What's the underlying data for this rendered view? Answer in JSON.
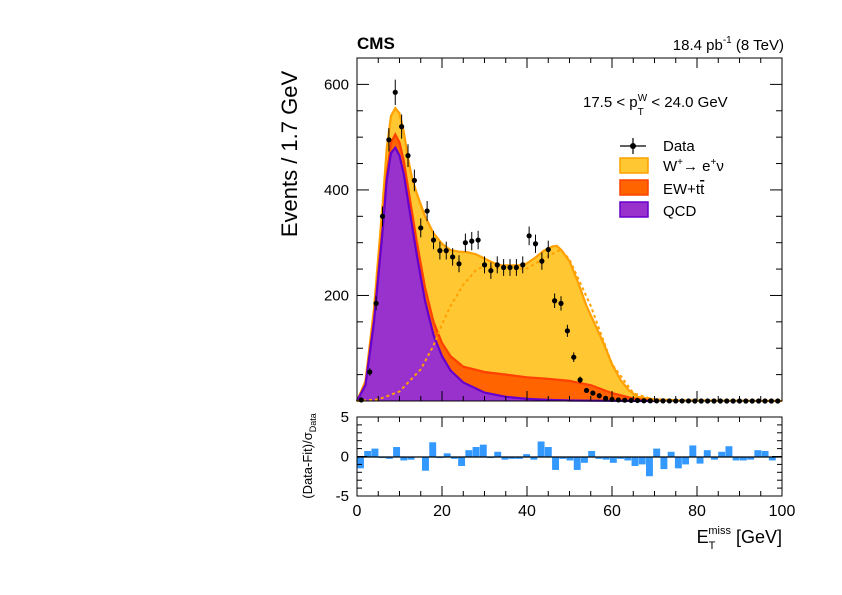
{
  "header": {
    "experiment": "CMS",
    "lumi_value": "18.4 pb",
    "lumi_exp": "-1",
    "energy": " (8 TeV)"
  },
  "selection": {
    "range_lo": "17.5 < p",
    "sub": "T",
    "sup": "W",
    "range_hi": " < 24.0 GeV"
  },
  "legend": {
    "data": "Data",
    "signal_main": "W",
    "signal_sup": "+",
    "signal_arrow": "→ e",
    "signal_sup2": "+",
    "signal_nu": "ν",
    "ew": "EW+t",
    "ew_bar": "t",
    "qcd": "QCD"
  },
  "colors": {
    "signal_fill": "#FFC832",
    "signal_line": "#FFA000",
    "ew_fill": "#FF6400",
    "ew_line": "#FF4000",
    "qcd_fill": "#9932CC",
    "qcd_line": "#6600CC",
    "pull_bar": "#3399FF",
    "data": "#000000"
  },
  "chart_data": [
    {
      "type": "area",
      "ylabel": "Events / 1.7 GeV",
      "xlim": [
        0,
        100
      ],
      "ylim": [
        0,
        650
      ],
      "yticks": [
        200,
        400,
        600
      ],
      "xticks": [
        0,
        20,
        40,
        60,
        80,
        100
      ],
      "stack": [
        {
          "name": "QCD",
          "x": [
            0,
            2,
            4,
            6,
            7,
            8,
            9,
            10,
            11,
            12,
            14,
            16,
            18,
            20,
            22,
            25,
            30,
            35,
            40,
            45,
            50,
            55,
            60,
            65,
            70
          ],
          "values": [
            0,
            30,
            150,
            320,
            420,
            470,
            480,
            465,
            430,
            380,
            280,
            190,
            125,
            85,
            58,
            35,
            16,
            8,
            4,
            2,
            1,
            0.5,
            0.3,
            0.1,
            0
          ]
        },
        {
          "name": "EW+tt",
          "x": [
            0,
            2,
            4,
            6,
            7,
            8,
            9,
            10,
            11,
            12,
            14,
            16,
            18,
            20,
            22,
            25,
            30,
            35,
            40,
            45,
            50,
            55,
            60,
            65,
            70
          ],
          "values": [
            0,
            32,
            155,
            330,
            430,
            490,
            505,
            490,
            455,
            405,
            305,
            215,
            150,
            110,
            85,
            65,
            55,
            50,
            45,
            42,
            38,
            30,
            15,
            5,
            0
          ]
        },
        {
          "name": "W+ -> e+ nu",
          "x": [
            0,
            2,
            4,
            6,
            7,
            8,
            9,
            10,
            11,
            12,
            13,
            14,
            16,
            18,
            20,
            22,
            24,
            26,
            28,
            30,
            32,
            34,
            36,
            38,
            40,
            42,
            44,
            46,
            47,
            48,
            50,
            52,
            54,
            56,
            58,
            60,
            62,
            64,
            66,
            70,
            75,
            80,
            85,
            90,
            95,
            100
          ],
          "values": [
            0,
            38,
            175,
            370,
            480,
            540,
            555,
            545,
            510,
            460,
            420,
            395,
            350,
            318,
            298,
            286,
            283,
            282,
            278,
            270,
            262,
            257,
            257,
            257,
            261,
            272,
            285,
            293,
            294,
            287,
            265,
            225,
            180,
            145,
            110,
            70,
            40,
            20,
            8,
            3,
            1.5,
            1,
            0.8,
            0.5,
            0.3,
            0.2
          ]
        }
      ],
      "signal_only": {
        "name": "W+ -> e+ nu (signal component)",
        "x": [
          0,
          5,
          10,
          15,
          18,
          20,
          22,
          25,
          28,
          30,
          32,
          35,
          40,
          45,
          48,
          50,
          55,
          60,
          65,
          70
        ],
        "values": [
          0,
          3,
          18,
          60,
          105,
          145,
          180,
          220,
          248,
          256,
          254,
          249,
          251,
          275,
          287,
          268,
          180,
          70,
          15,
          2
        ]
      },
      "data_points": {
        "name": "Data",
        "x": [
          1,
          3,
          4.5,
          6,
          7.5,
          9,
          10.5,
          12,
          13.5,
          15,
          16.5,
          18,
          19.5,
          21,
          22.5,
          24,
          25.5,
          27,
          28.5,
          30,
          31.5,
          33,
          34.5,
          36,
          37.5,
          39,
          40.5,
          42,
          43.5,
          45,
          46.5,
          48,
          49.5,
          51,
          52.5,
          54,
          55.5,
          57,
          58.5,
          60,
          61.5,
          63,
          64.5,
          66,
          67.5,
          69,
          70.5,
          72,
          73.5,
          75,
          76.5,
          78,
          79.5,
          81,
          82.5,
          84,
          85.5,
          87,
          88.5,
          90,
          91.5,
          93,
          94.5,
          96,
          97.5,
          99
        ],
        "values": [
          2,
          55,
          185,
          350,
          495,
          585,
          520,
          465,
          418,
          328,
          360,
          305,
          285,
          285,
          273,
          260,
          300,
          303,
          305,
          258,
          247,
          258,
          253,
          253,
          253,
          258,
          313,
          298,
          265,
          287,
          190,
          185,
          133,
          83,
          40,
          20,
          15,
          10,
          5,
          3,
          2,
          1.5,
          1,
          1,
          0.5,
          0.5,
          0.3,
          0.2,
          0.1,
          0.1,
          0.1,
          0.1,
          0,
          0,
          0,
          0,
          0,
          0,
          0,
          0,
          0,
          0,
          0,
          0,
          0,
          0
        ],
        "errors": [
          1.5,
          7,
          13,
          18.7,
          22,
          24,
          23,
          21.5,
          20.5,
          18,
          19,
          17.5,
          16.9,
          16.9,
          16.5,
          16.1,
          17.3,
          17.4,
          17.5,
          16.1,
          15.7,
          16.1,
          15.9,
          15.9,
          15.9,
          16.1,
          17.7,
          17.3,
          16.3,
          16.9,
          13.8,
          13.6,
          11.5,
          9.1,
          6.3,
          4.5,
          3.9,
          3.2,
          2.2,
          1.7,
          1.4,
          1.2,
          1,
          1,
          0.7,
          0.7,
          0.5,
          0.4,
          0.3,
          0.3,
          0.3,
          0.3,
          0,
          0,
          0,
          0,
          0,
          0,
          0,
          0,
          0,
          0,
          0,
          0,
          0,
          0
        ]
      }
    },
    {
      "type": "bar",
      "ylabel": "(Data-Fit)/σ",
      "ylabel_sub": "Data",
      "xlabel": "E",
      "xlabel_sub": "T",
      "xlabel_sup": "miss",
      "xlabel_unit": " [GeV]",
      "xlim": [
        0,
        100
      ],
      "ylim": [
        -5,
        5
      ],
      "yticks": [
        -5,
        0,
        5
      ],
      "xticks": [
        0,
        20,
        40,
        60,
        80,
        100
      ],
      "bin_width": 1.7,
      "x": [
        0.85,
        2.55,
        4.25,
        5.95,
        7.65,
        9.35,
        11.05,
        12.75,
        14.45,
        16.15,
        17.85,
        19.55,
        21.25,
        22.95,
        24.65,
        26.35,
        28.05,
        29.75,
        31.45,
        33.15,
        34.85,
        36.55,
        38.25,
        39.95,
        41.65,
        43.35,
        45.05,
        46.75,
        48.45,
        50.15,
        51.85,
        53.55,
        55.25,
        56.95,
        58.65,
        60.35,
        62.05,
        63.75,
        65.45,
        67.15,
        68.85,
        70.55,
        72.25,
        73.95,
        75.65,
        77.35,
        79.05,
        80.75,
        82.45,
        84.15,
        85.85,
        87.55,
        89.25,
        90.95,
        92.65,
        94.35,
        96.05,
        97.75,
        99.45
      ],
      "values": [
        -1.5,
        0.7,
        1.0,
        -0.2,
        -0.3,
        1.2,
        -0.5,
        -0.4,
        -0.1,
        -1.8,
        1.8,
        -0.2,
        0.4,
        -0.3,
        -1.2,
        0.8,
        1.2,
        1.5,
        -0.2,
        0.6,
        -0.4,
        -0.3,
        -0.3,
        0.3,
        -0.4,
        1.9,
        1.2,
        -1.7,
        -0.3,
        -0.5,
        -1.7,
        -0.8,
        0.7,
        -0.3,
        -0.4,
        -0.8,
        -0.3,
        -0.5,
        -1.2,
        -1.0,
        -2.5,
        1.0,
        -1.6,
        0.6,
        -1.5,
        -1.0,
        1.4,
        -0.9,
        0.8,
        -0.4,
        0.6,
        1.3,
        -0.5,
        -0.5,
        -0.4,
        0.8,
        0.7,
        -0.5,
        0.0
      ]
    }
  ]
}
